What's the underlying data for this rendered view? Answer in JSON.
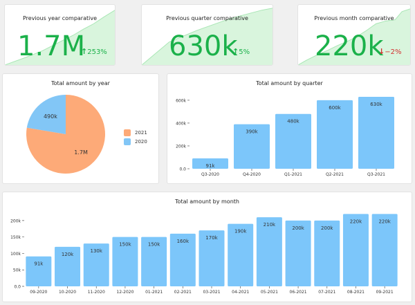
{
  "colors": {
    "green": "#1bb14a",
    "red": "#d32f2f",
    "bar": "#7cc6fa",
    "spark_fill": "#d9f5dd",
    "spark_line": "#a8e6b4",
    "pie_2021": "#fdaa78",
    "pie_2020": "#82c6f6"
  },
  "kpis": [
    {
      "title": "Previous year comparative",
      "value": "1.7M",
      "delta": "253%",
      "direction": "up",
      "arrow": "↑"
    },
    {
      "title": "Previous quarter comparative",
      "value": "630k",
      "delta": "5%",
      "direction": "up",
      "arrow": "↑"
    },
    {
      "title": "Previous month comparative",
      "value": "220k",
      "delta": "−2%",
      "direction": "down",
      "arrow": "↓"
    }
  ],
  "panels": {
    "year": {
      "title": "Total amount by year"
    },
    "quarter": {
      "title": "Total amount by quarter"
    },
    "month": {
      "title": "Total amount by month"
    }
  },
  "chart_data": [
    {
      "type": "pie",
      "title": "Total amount by year",
      "categories": [
        "2021",
        "2020"
      ],
      "values": [
        1700000,
        490000
      ],
      "data_labels": [
        "1.7M",
        "490k"
      ],
      "colors": [
        "#fdaa78",
        "#82c6f6"
      ],
      "legend": "right"
    },
    {
      "type": "bar",
      "title": "Total amount by quarter",
      "categories": [
        "Q3-2020",
        "Q4-2020",
        "Q1-2021",
        "Q2-2021",
        "Q3-2021"
      ],
      "values": [
        91000,
        390000,
        480000,
        600000,
        630000
      ],
      "data_labels": [
        "91k",
        "390k",
        "480k",
        "600k",
        "630k"
      ],
      "yticks": [
        0,
        200000,
        400000,
        600000
      ],
      "ytick_labels": [
        "0.0",
        "200k",
        "400k",
        "600k"
      ],
      "ylim": [
        0,
        660000
      ],
      "grid": false
    },
    {
      "type": "bar",
      "title": "Total amount by month",
      "categories": [
        "09-2020",
        "10-2020",
        "11-2020",
        "12-2020",
        "01-2021",
        "02-2021",
        "03-2021",
        "04-2021",
        "05-2021",
        "06-2021",
        "07-2021",
        "08-2021",
        "09-2021"
      ],
      "values": [
        91000,
        120000,
        130000,
        150000,
        150000,
        160000,
        170000,
        190000,
        210000,
        200000,
        200000,
        220000,
        220000
      ],
      "data_labels": [
        "91k",
        "120k",
        "130k",
        "150k",
        "150k",
        "160k",
        "170k",
        "190k",
        "210k",
        "200k",
        "200k",
        "220k",
        "220k"
      ],
      "yticks": [
        0,
        50000,
        100000,
        150000,
        200000
      ],
      "ytick_labels": [
        "0.0",
        "50k",
        "100k",
        "150k",
        "200k"
      ],
      "ylim": [
        0,
        225000
      ],
      "grid": false
    }
  ]
}
